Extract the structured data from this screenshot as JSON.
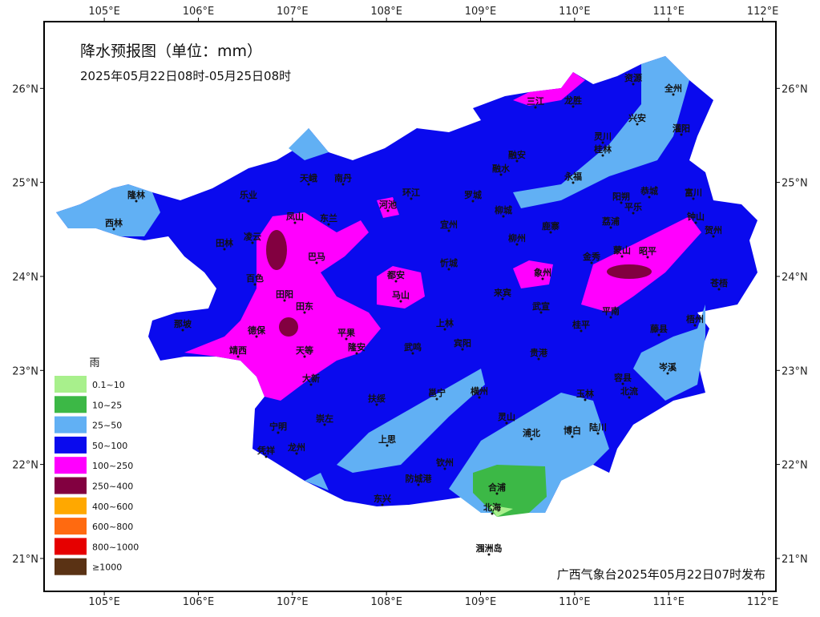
{
  "map": {
    "title": "降水预报图（单位：mm）",
    "subtitle": "2025年05月22日08时-05月25日08时",
    "footer": "广西气象台2025年05月22日07时发布",
    "xlim": [
      104.36,
      112.14
    ],
    "ylim": [
      20.65,
      26.71
    ],
    "xticks": [
      {
        "value": 105,
        "label": "105°E"
      },
      {
        "value": 106,
        "label": "106°E"
      },
      {
        "value": 107,
        "label": "107°E"
      },
      {
        "value": 108,
        "label": "108°E"
      },
      {
        "value": 109,
        "label": "109°E"
      },
      {
        "value": 110,
        "label": "110°E"
      },
      {
        "value": 111,
        "label": "111°E"
      },
      {
        "value": 112,
        "label": "112°E"
      }
    ],
    "yticks": [
      {
        "value": 26,
        "label": "26°N"
      },
      {
        "value": 25,
        "label": "25°N"
      },
      {
        "value": 24,
        "label": "24°N"
      },
      {
        "value": 23,
        "label": "23°N"
      },
      {
        "value": 22,
        "label": "22°N"
      },
      {
        "value": 21,
        "label": "21°N"
      }
    ],
    "legend": {
      "title": "雨",
      "items": [
        {
          "label": "0.1~10",
          "color": "#a8f08c"
        },
        {
          "label": "10~25",
          "color": "#3cb846"
        },
        {
          "label": "25~50",
          "color": "#61b0f4"
        },
        {
          "label": "50~100",
          "color": "#0a0aee"
        },
        {
          "label": "100~250",
          "color": "#ff00fe"
        },
        {
          "label": "250~400",
          "color": "#820040"
        },
        {
          "label": "400~600",
          "color": "#ffa800"
        },
        {
          "label": "600~800",
          "color": "#ff6a10"
        },
        {
          "label": "800~1000",
          "color": "#e60000"
        },
        {
          "label": "≥1000",
          "color": "#5a3214"
        }
      ]
    },
    "cities": [
      "资源",
      "全州",
      "三江",
      "龙胜",
      "兴安",
      "灌阳",
      "灵川",
      "桂林",
      "融安",
      "融水",
      "永福",
      "阳朔",
      "恭城",
      "富川",
      "钟山",
      "贺州",
      "平乐",
      "荔浦",
      "鹿寨",
      "柳城",
      "柳州",
      "罗城",
      "宜州",
      "环江",
      "河池",
      "南丹",
      "天峨",
      "乐业",
      "凤山",
      "东兰",
      "隆林",
      "西林",
      "田林",
      "凌云",
      "巴马",
      "都安",
      "忻城",
      "象州",
      "金秀",
      "蒙山",
      "昭平",
      "苍梧",
      "梧州",
      "藤县",
      "平南",
      "武宣",
      "来宾",
      "马山",
      "上林",
      "宾阳",
      "百色",
      "田阳",
      "田东",
      "那坡",
      "德保",
      "平果",
      "隆安",
      "靖西",
      "天等",
      "大新",
      "武鸣",
      "贵港",
      "桂平",
      "岑溪",
      "容县",
      "北流",
      "玉林",
      "横州",
      "邕宁",
      "扶绥",
      "崇左",
      "宁明",
      "凭祥",
      "龙州",
      "上思",
      "灵山",
      "浦北",
      "博白",
      "陆川",
      "钦州",
      "防城港",
      "东兴",
      "合浦",
      "北海",
      "涠洲岛"
    ]
  }
}
